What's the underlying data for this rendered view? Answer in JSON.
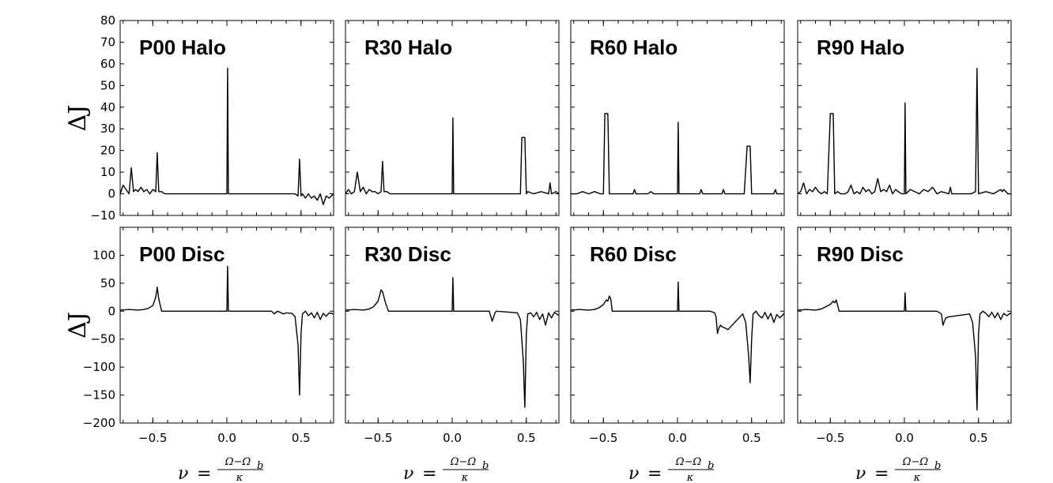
{
  "chart_data": [
    {
      "type": "line",
      "row": 0,
      "col": 0,
      "title": "P00 Halo",
      "xlim": [
        -0.72,
        0.72
      ],
      "ylim": [
        -10,
        80
      ],
      "yticks": [
        -10,
        0,
        10,
        20,
        30,
        40,
        50,
        60,
        70,
        80
      ],
      "ylabel": "ΔJ",
      "xlabel": "",
      "series": [
        {
          "name": "P00 Halo",
          "x": [
            -0.72,
            -0.7,
            -0.68,
            -0.66,
            -0.645,
            -0.63,
            -0.615,
            -0.6,
            -0.58,
            -0.56,
            -0.54,
            -0.52,
            -0.5,
            -0.48,
            -0.47,
            -0.46,
            -0.44,
            -0.42,
            -0.3,
            0.0,
            0.005,
            0.01,
            0.015,
            0.3,
            0.44,
            0.46,
            0.48,
            0.49,
            0.5,
            0.51,
            0.53,
            0.55,
            0.57,
            0.59,
            0.61,
            0.63,
            0.65,
            0.67,
            0.69,
            0.72
          ],
          "y": [
            0,
            4,
            2,
            0,
            12,
            1,
            2,
            1,
            3,
            1,
            2,
            0,
            2,
            1,
            19,
            1,
            1,
            0,
            0,
            0,
            58,
            0,
            0,
            0,
            0,
            0,
            -1,
            16,
            -1,
            0,
            -2,
            0,
            -2,
            -1,
            -3,
            0,
            -5,
            -1,
            -2,
            0
          ]
        }
      ]
    },
    {
      "type": "line",
      "row": 0,
      "col": 1,
      "title": "R30 Halo",
      "xlim": [
        -0.72,
        0.72
      ],
      "ylim": [
        -10,
        80
      ],
      "yticks": [
        -10,
        0,
        10,
        20,
        30,
        40,
        50,
        60,
        70,
        80
      ],
      "ylabel": "",
      "xlabel": "",
      "series": [
        {
          "name": "R30 Halo",
          "x": [
            -0.72,
            -0.7,
            -0.68,
            -0.66,
            -0.64,
            -0.62,
            -0.6,
            -0.58,
            -0.56,
            -0.54,
            -0.52,
            -0.5,
            -0.48,
            -0.47,
            -0.46,
            -0.44,
            -0.42,
            -0.3,
            0.0,
            0.005,
            0.01,
            0.3,
            0.46,
            0.47,
            0.49,
            0.5,
            0.51,
            0.55,
            0.6,
            0.65,
            0.66,
            0.67,
            0.7,
            0.72
          ],
          "y": [
            0,
            2,
            0,
            1,
            10,
            1,
            3,
            0,
            2,
            1,
            1,
            0,
            1,
            15,
            1,
            1,
            0,
            0,
            0,
            35,
            0,
            0,
            0,
            26,
            26,
            0,
            1,
            0,
            1,
            0,
            5,
            0,
            1,
            0
          ]
        }
      ]
    },
    {
      "type": "line",
      "row": 0,
      "col": 2,
      "title": "R60 Halo",
      "xlim": [
        -0.72,
        0.72
      ],
      "ylim": [
        -10,
        80
      ],
      "yticks": [
        -10,
        0,
        10,
        20,
        30,
        40,
        50,
        60,
        70,
        80
      ],
      "ylabel": "",
      "xlabel": "",
      "series": [
        {
          "name": "R60 Halo",
          "x": [
            -0.72,
            -0.68,
            -0.64,
            -0.6,
            -0.56,
            -0.52,
            -0.5,
            -0.49,
            -0.47,
            -0.46,
            -0.44,
            -0.35,
            -0.3,
            -0.29,
            -0.28,
            -0.2,
            -0.18,
            -0.16,
            -0.1,
            0.0,
            0.005,
            0.01,
            0.1,
            0.15,
            0.16,
            0.17,
            0.25,
            0.3,
            0.31,
            0.32,
            0.45,
            0.47,
            0.49,
            0.5,
            0.55,
            0.65,
            0.66,
            0.67,
            0.72
          ],
          "y": [
            0,
            0,
            1,
            0,
            1,
            0,
            0,
            37,
            37,
            0,
            0,
            0,
            0,
            2,
            0,
            0,
            1,
            0,
            0,
            0,
            33,
            0,
            0,
            0,
            2,
            0,
            0,
            0,
            2,
            0,
            0,
            22,
            22,
            0,
            0,
            0,
            2,
            0,
            0
          ]
        }
      ]
    },
    {
      "type": "line",
      "row": 0,
      "col": 3,
      "title": "R90 Halo",
      "xlim": [
        -0.72,
        0.72
      ],
      "ylim": [
        -10,
        80
      ],
      "yticks": [
        -10,
        0,
        10,
        20,
        30,
        40,
        50,
        60,
        70,
        80
      ],
      "ylabel": "",
      "xlabel": "",
      "series": [
        {
          "name": "R90 Halo",
          "x": [
            -0.72,
            -0.7,
            -0.68,
            -0.66,
            -0.64,
            -0.62,
            -0.6,
            -0.58,
            -0.56,
            -0.54,
            -0.52,
            -0.5,
            -0.48,
            -0.47,
            -0.45,
            -0.43,
            -0.4,
            -0.38,
            -0.36,
            -0.34,
            -0.32,
            -0.3,
            -0.28,
            -0.26,
            -0.24,
            -0.22,
            -0.2,
            -0.18,
            -0.16,
            -0.14,
            -0.12,
            -0.1,
            -0.08,
            -0.06,
            -0.04,
            -0.02,
            0.0,
            0.005,
            0.01,
            0.04,
            0.07,
            0.1,
            0.13,
            0.16,
            0.19,
            0.22,
            0.25,
            0.3,
            0.31,
            0.32,
            0.45,
            0.48,
            0.49,
            0.5,
            0.55,
            0.6,
            0.65,
            0.66,
            0.67,
            0.7,
            0.72
          ],
          "y": [
            0,
            1,
            5,
            0,
            2,
            1,
            3,
            1,
            0,
            1,
            0,
            37,
            37,
            0,
            1,
            0,
            0,
            1,
            4,
            0,
            1,
            0,
            3,
            1,
            2,
            0,
            1,
            7,
            1,
            2,
            1,
            4,
            0,
            2,
            1,
            0,
            0,
            42,
            0,
            2,
            1,
            0,
            2,
            1,
            3,
            0,
            1,
            0,
            3,
            0,
            0,
            1,
            58,
            0,
            1,
            0,
            2,
            1,
            2,
            0,
            0
          ]
        }
      ]
    },
    {
      "type": "line",
      "row": 1,
      "col": 0,
      "title": "P00 Disc",
      "xlim": [
        -0.72,
        0.72
      ],
      "ylim": [
        -200,
        150
      ],
      "yticks": [
        -200,
        -150,
        -100,
        -50,
        0,
        50,
        100
      ],
      "ylabel": "ΔJ",
      "xlabel": "ν = (Ω−Ω_b)/κ",
      "series": [
        {
          "name": "P00 Disc",
          "x": [
            -0.72,
            -0.66,
            -0.6,
            -0.56,
            -0.53,
            -0.5,
            -0.48,
            -0.47,
            -0.46,
            -0.44,
            -0.3,
            0.0,
            0.005,
            0.01,
            0.3,
            0.32,
            0.34,
            0.36,
            0.38,
            0.4,
            0.44,
            0.46,
            0.48,
            0.49,
            0.5,
            0.51,
            0.53,
            0.55,
            0.57,
            0.59,
            0.61,
            0.63,
            0.65,
            0.67,
            0.69,
            0.72
          ],
          "y": [
            2,
            3,
            2,
            3,
            5,
            10,
            25,
            43,
            22,
            0,
            0,
            0,
            80,
            0,
            0,
            -5,
            0,
            -2,
            -5,
            -3,
            -4,
            -10,
            -60,
            -150,
            -40,
            -5,
            0,
            -8,
            -3,
            -12,
            -2,
            -15,
            -4,
            -9,
            -3,
            -5
          ]
        }
      ]
    },
    {
      "type": "line",
      "row": 1,
      "col": 1,
      "title": "R30 Disc",
      "xlim": [
        -0.72,
        0.72
      ],
      "ylim": [
        -200,
        150
      ],
      "yticks": [
        -200,
        -150,
        -100,
        -50,
        0,
        50,
        100
      ],
      "ylabel": "",
      "xlabel": "ν = (Ω−Ω_b)/κ",
      "series": [
        {
          "name": "R30 Disc",
          "x": [
            -0.72,
            -0.66,
            -0.6,
            -0.56,
            -0.53,
            -0.5,
            -0.48,
            -0.47,
            -0.45,
            -0.43,
            -0.3,
            0.0,
            0.005,
            0.01,
            0.25,
            0.27,
            0.29,
            0.3,
            0.44,
            0.46,
            0.48,
            0.49,
            0.5,
            0.51,
            0.53,
            0.55,
            0.57,
            0.59,
            0.61,
            0.63,
            0.65,
            0.67,
            0.69,
            0.72
          ],
          "y": [
            2,
            3,
            2,
            4,
            8,
            18,
            38,
            35,
            15,
            0,
            0,
            0,
            60,
            0,
            0,
            -18,
            -2,
            0,
            -3,
            -15,
            -90,
            -172,
            -40,
            -5,
            -3,
            -10,
            -2,
            -15,
            -5,
            -25,
            -3,
            -12,
            -2,
            -8
          ]
        }
      ]
    },
    {
      "type": "line",
      "row": 1,
      "col": 2,
      "title": "R60 Disc",
      "xlim": [
        -0.72,
        0.72
      ],
      "ylim": [
        -200,
        150
      ],
      "yticks": [
        -200,
        -150,
        -100,
        -50,
        0,
        50,
        100
      ],
      "ylabel": "",
      "xlabel": "ν = (Ω−Ω_b)/κ",
      "series": [
        {
          "name": "R60 Disc",
          "x": [
            -0.72,
            -0.66,
            -0.6,
            -0.56,
            -0.53,
            -0.5,
            -0.48,
            -0.47,
            -0.46,
            -0.45,
            -0.44,
            -0.3,
            0.0,
            0.005,
            0.01,
            0.22,
            0.25,
            0.26,
            0.27,
            0.28,
            0.29,
            0.3,
            0.32,
            0.34,
            0.44,
            0.46,
            0.48,
            0.49,
            0.5,
            0.51,
            0.53,
            0.55,
            0.57,
            0.59,
            0.61,
            0.63,
            0.65,
            0.67,
            0.69,
            0.72
          ],
          "y": [
            2,
            3,
            2,
            3,
            6,
            12,
            20,
            18,
            27,
            22,
            0,
            0,
            0,
            52,
            0,
            0,
            -3,
            -10,
            -40,
            -30,
            -25,
            -28,
            -30,
            -33,
            -5,
            -20,
            -80,
            -128,
            -50,
            -5,
            0,
            -8,
            -12,
            -2,
            -14,
            -4,
            -20,
            -6,
            -12,
            -4
          ]
        }
      ]
    },
    {
      "type": "line",
      "row": 1,
      "col": 3,
      "title": "R90 Disc",
      "xlim": [
        -0.72,
        0.72
      ],
      "ylim": [
        -200,
        150
      ],
      "yticks": [
        -200,
        -150,
        -100,
        -50,
        0,
        50,
        100
      ],
      "ylabel": "",
      "xlabel": "ν = (Ω−Ω_b)/κ",
      "series": [
        {
          "name": "R90 Disc",
          "x": [
            -0.72,
            -0.66,
            -0.6,
            -0.56,
            -0.53,
            -0.5,
            -0.48,
            -0.47,
            -0.46,
            -0.44,
            -0.3,
            0.0,
            0.005,
            0.01,
            0.22,
            0.25,
            0.26,
            0.27,
            0.28,
            0.3,
            0.44,
            0.46,
            0.48,
            0.49,
            0.5,
            0.51,
            0.53,
            0.55,
            0.57,
            0.59,
            0.61,
            0.63,
            0.65,
            0.67,
            0.69,
            0.72
          ],
          "y": [
            2,
            3,
            2,
            4,
            8,
            12,
            18,
            15,
            20,
            0,
            0,
            0,
            33,
            0,
            0,
            -5,
            -25,
            -18,
            -12,
            -10,
            -5,
            -20,
            -80,
            -177,
            -40,
            -5,
            0,
            -4,
            -10,
            -2,
            -12,
            -3,
            -15,
            -4,
            -8,
            -3
          ]
        }
      ]
    }
  ],
  "xticks": [
    -0.5,
    0.0,
    0.5
  ],
  "xtick_labels": [
    "−0.5",
    "0.0",
    "0.5"
  ],
  "axis_labels": {
    "y_main": "ΔJ",
    "x_nu": "ν",
    "x_eq": "=",
    "x_num": "Ω−Ω",
    "x_sub": "b",
    "x_den": "κ"
  }
}
